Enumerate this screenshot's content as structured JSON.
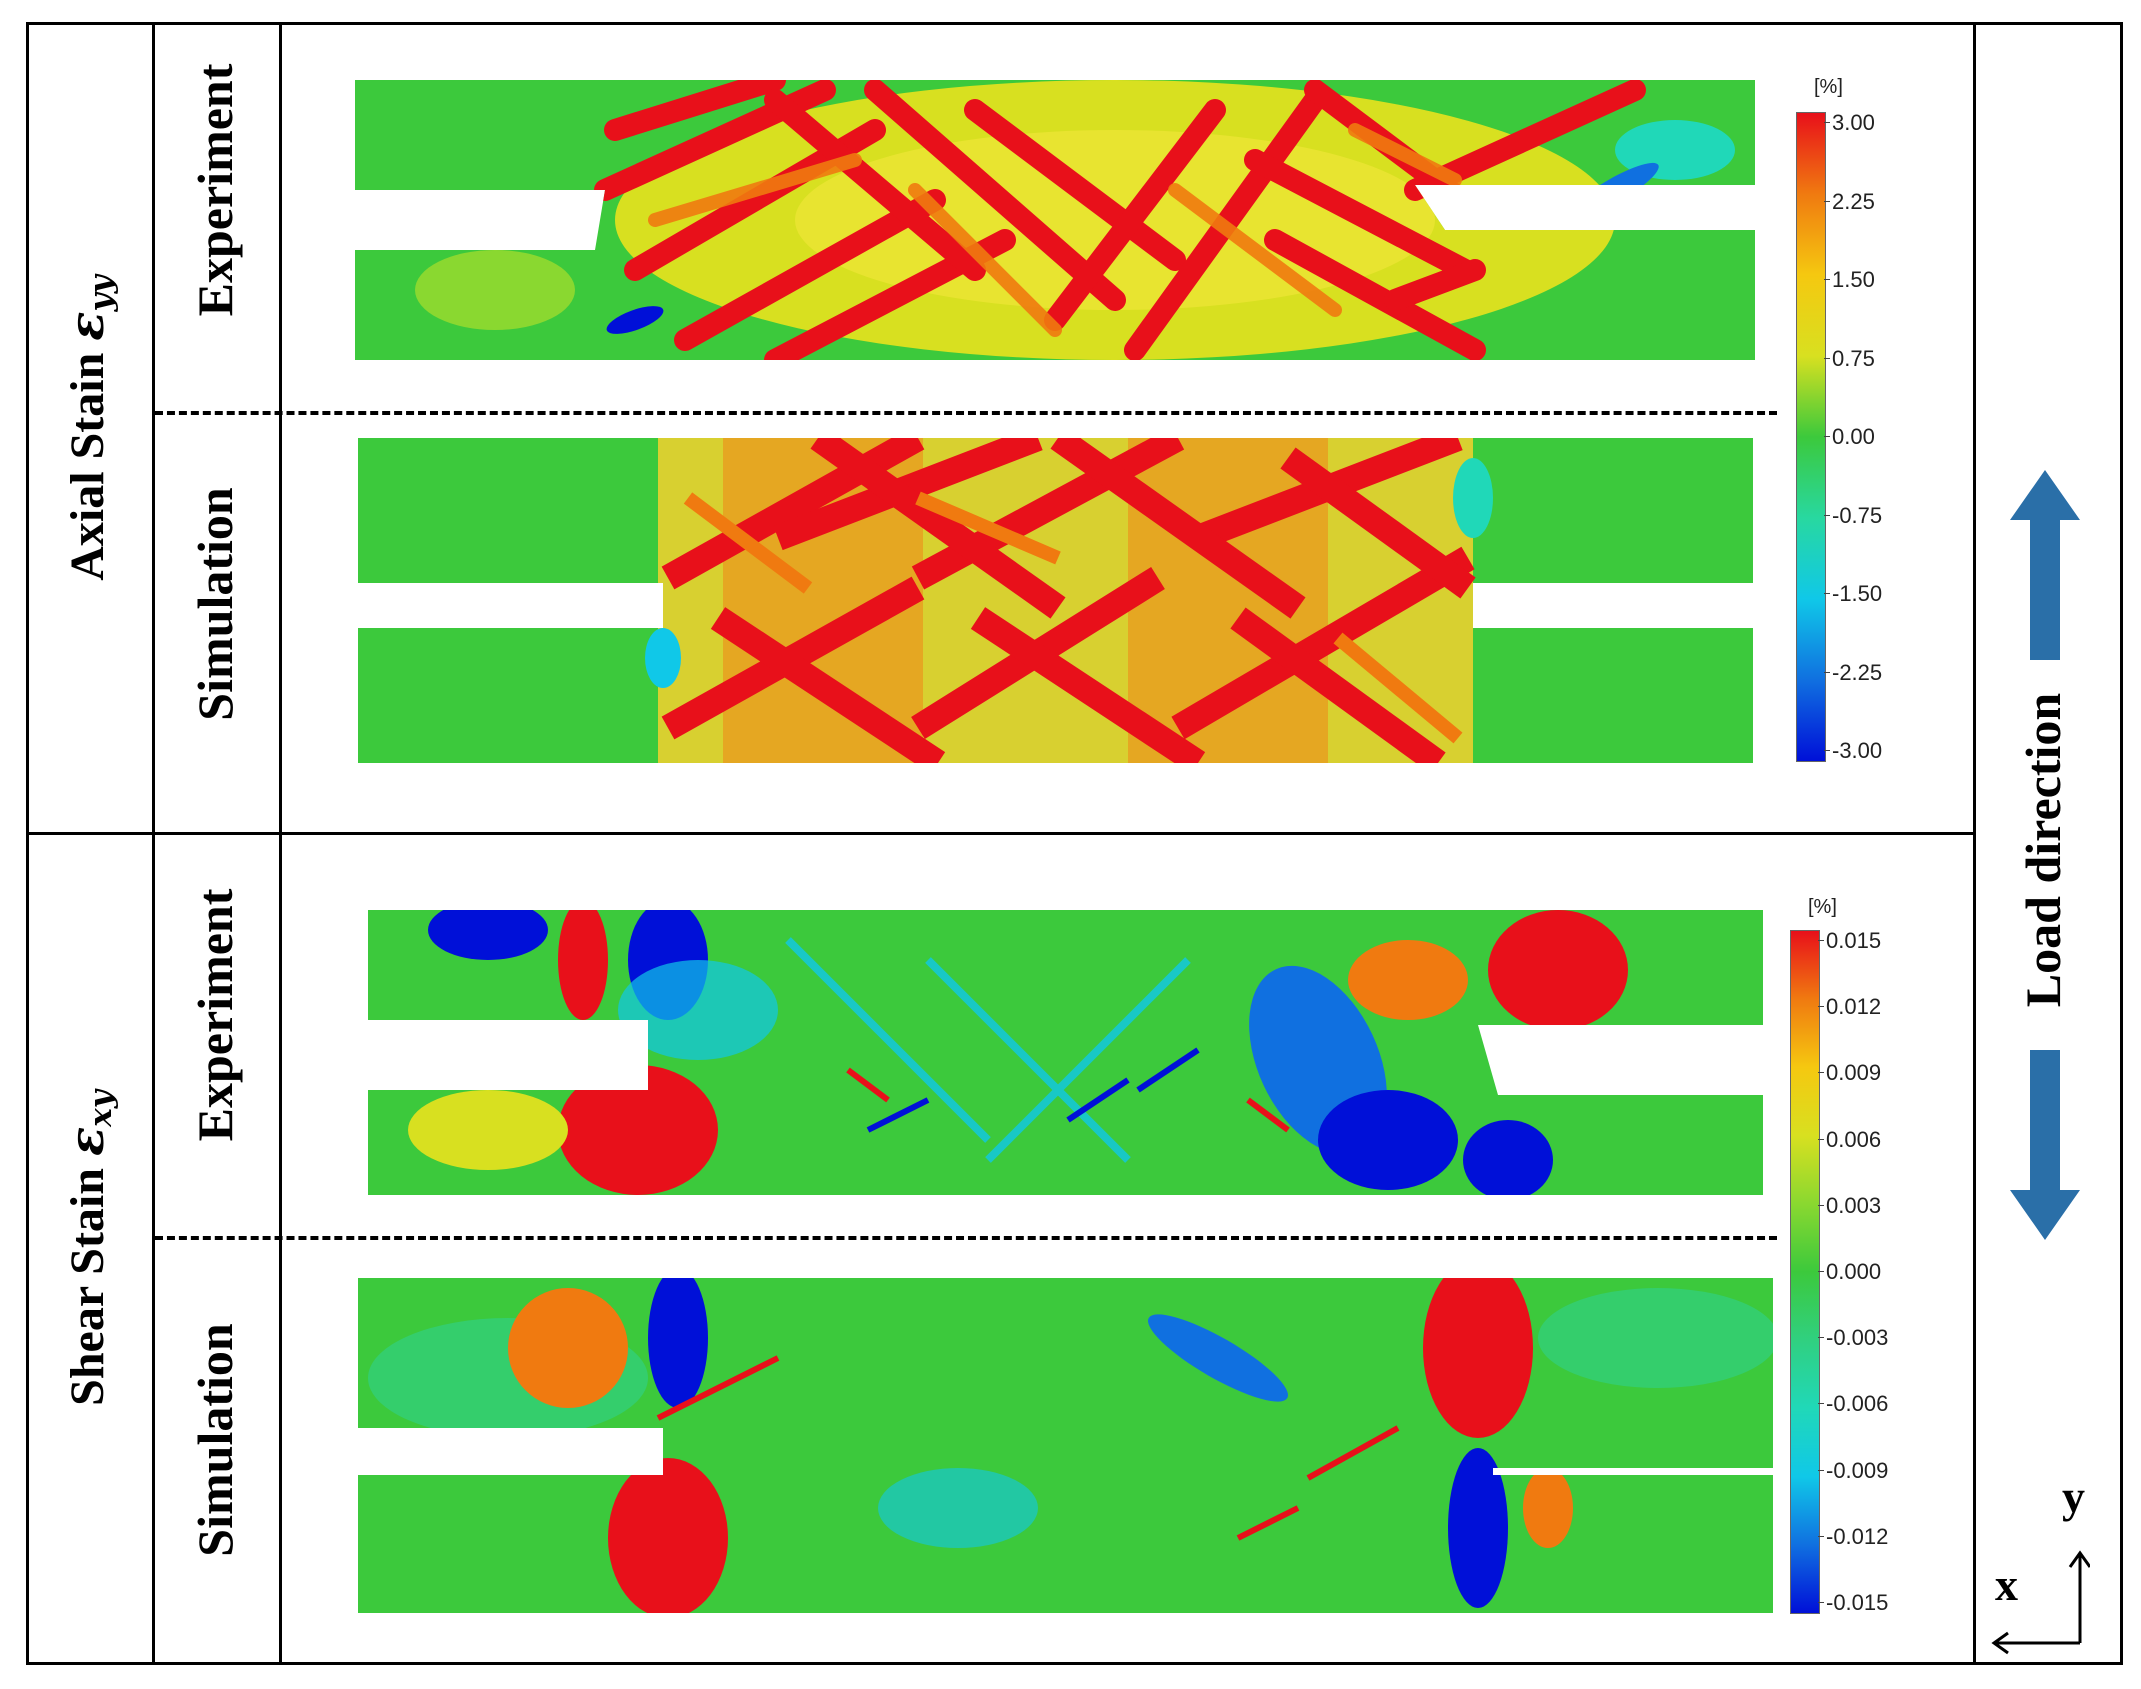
{
  "row_labels": {
    "axial": {
      "text": "Axial Stain",
      "symbol": "ε",
      "subscript": "yy"
    },
    "shear": {
      "text": "Shear Stain",
      "symbol": "ε",
      "subscript": "xy"
    }
  },
  "sub_labels": {
    "axial_experiment": "Experiment",
    "axial_simulation": "Simulation",
    "shear_experiment": "Experiment",
    "shear_simulation": "Simulation"
  },
  "colorbars": {
    "axial": {
      "unit": "[%]",
      "ticks": [
        "3.00",
        "2.25",
        "1.50",
        "0.75",
        "0.00",
        "-0.75",
        "-1.50",
        "-2.25",
        "-3.00"
      ],
      "colors": [
        "#e8101a",
        "#f07a10",
        "#f5c810",
        "#d8e020",
        "#3cc93c",
        "#28d8a0",
        "#10c8e8",
        "#1070e0",
        "#0010d8"
      ]
    },
    "shear": {
      "unit": "[%]",
      "ticks": [
        "0.015",
        "0.012",
        "0.009",
        "0.006",
        "0.003",
        "0.000",
        "-0.003",
        "-0.006",
        "-0.009",
        "-0.012",
        "-0.015"
      ],
      "colors": [
        "#e8101a",
        "#f07a10",
        "#f5c810",
        "#d8e020",
        "#8ad830",
        "#3cc93c",
        "#30d080",
        "#20d8b8",
        "#10c8e8",
        "#1070e0",
        "#0010d8"
      ]
    }
  },
  "load_direction": "Load direction",
  "axes": {
    "x": "x",
    "y": "y"
  }
}
